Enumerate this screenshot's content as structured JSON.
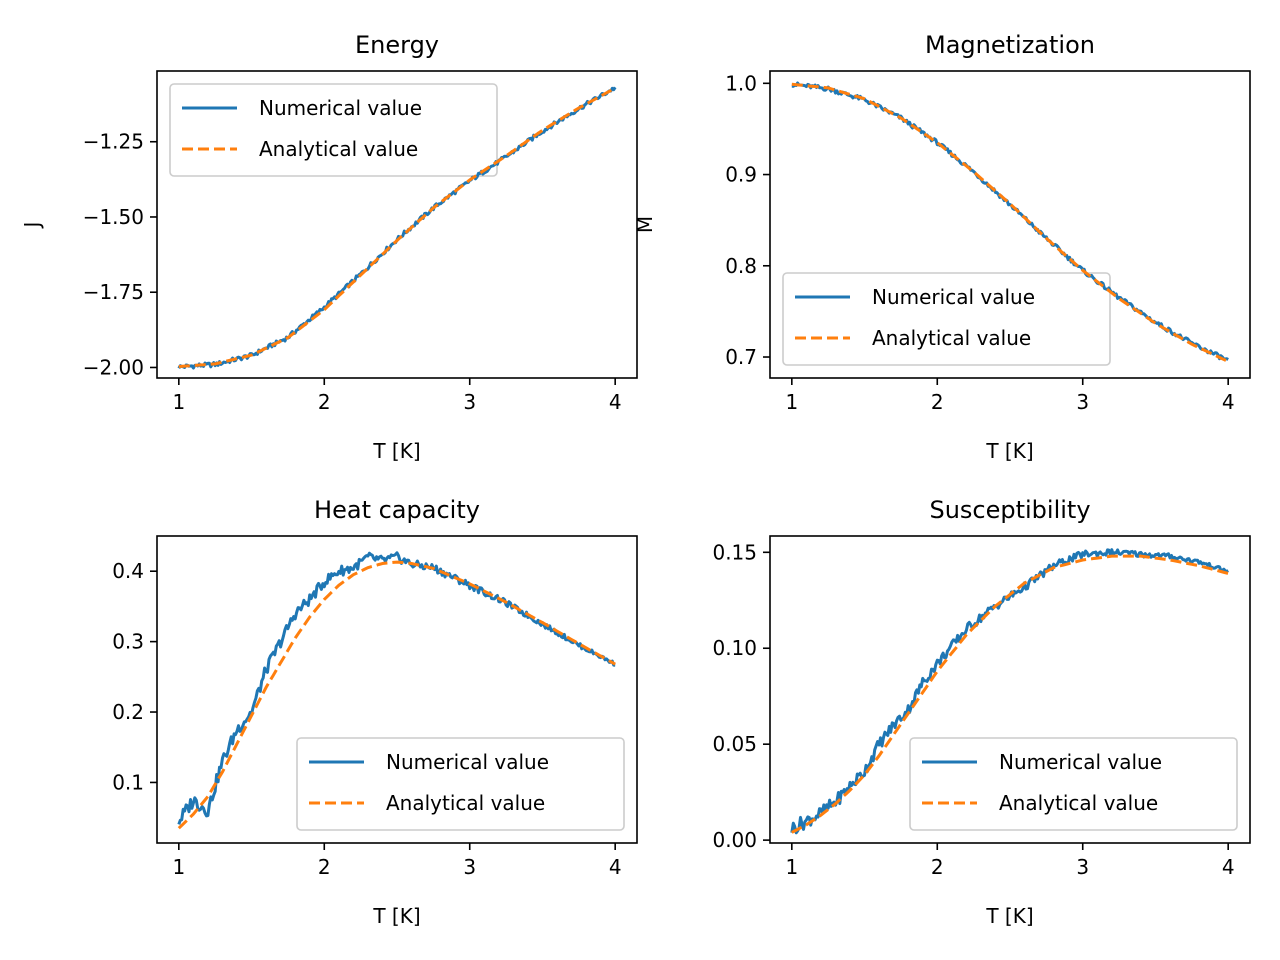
{
  "chart_data": [
    {
      "type": "line",
      "title": "Energy",
      "xlabel": "T [K]",
      "ylabel": "J",
      "xlim": [
        0.85,
        4.15
      ],
      "ylim": [
        -2.035,
        -1.015
      ],
      "xticks": [
        1,
        2,
        3,
        4
      ],
      "xtick_labels": [
        "1",
        "2",
        "3",
        "4"
      ],
      "yticks": [
        -2.0,
        -1.75,
        -1.5,
        -1.25
      ],
      "ytick_labels": [
        "−2.00",
        "−1.75",
        "−1.50",
        "−1.25"
      ],
      "legend": "upper-left",
      "series": [
        {
          "name": "Numerical value",
          "style": "solid",
          "color": "#1f77b4",
          "x": [
            1.0,
            1.25,
            1.5,
            1.75,
            2.0,
            2.25,
            2.5,
            2.75,
            3.0,
            3.25,
            3.5,
            3.75,
            4.0
          ],
          "y": [
            -1.998,
            -1.99,
            -1.96,
            -1.9,
            -1.8,
            -1.69,
            -1.575,
            -1.47,
            -1.38,
            -1.3,
            -1.215,
            -1.14,
            -1.07
          ]
        },
        {
          "name": "Analytical value",
          "style": "dashed",
          "color": "#ff7f0e",
          "x": [
            1.0,
            1.25,
            1.5,
            1.75,
            2.0,
            2.25,
            2.5,
            2.75,
            3.0,
            3.25,
            3.5,
            3.75,
            4.0
          ],
          "y": [
            -1.997,
            -1.988,
            -1.959,
            -1.901,
            -1.808,
            -1.693,
            -1.578,
            -1.47,
            -1.377,
            -1.297,
            -1.212,
            -1.138,
            -1.072
          ]
        }
      ]
    },
    {
      "type": "line",
      "title": "Magnetization",
      "xlabel": "T [K]",
      "ylabel": "M",
      "xlim": [
        0.85,
        4.15
      ],
      "ylim": [
        0.677,
        1.0135
      ],
      "xticks": [
        1,
        2,
        3,
        4
      ],
      "xtick_labels": [
        "1",
        "2",
        "3",
        "4"
      ],
      "yticks": [
        0.7,
        0.8,
        0.9,
        1.0
      ],
      "ytick_labels": [
        "0.7",
        "0.8",
        "0.9",
        "1.0"
      ],
      "legend": "lower-left",
      "series": [
        {
          "name": "Numerical value",
          "style": "solid",
          "color": "#1f77b4",
          "x": [
            1.0,
            1.25,
            1.5,
            1.75,
            2.0,
            2.25,
            2.5,
            2.75,
            3.0,
            3.25,
            3.5,
            3.75,
            4.0
          ],
          "y": [
            0.999,
            0.994,
            0.982,
            0.962,
            0.935,
            0.903,
            0.867,
            0.83,
            0.795,
            0.765,
            0.738,
            0.715,
            0.696
          ]
        },
        {
          "name": "Analytical value",
          "style": "dashed",
          "color": "#ff7f0e",
          "x": [
            1.0,
            1.25,
            1.5,
            1.75,
            2.0,
            2.25,
            2.5,
            2.75,
            3.0,
            3.25,
            3.5,
            3.75,
            4.0
          ],
          "y": [
            0.999,
            0.995,
            0.983,
            0.962,
            0.935,
            0.903,
            0.868,
            0.83,
            0.795,
            0.764,
            0.737,
            0.714,
            0.695
          ]
        }
      ]
    },
    {
      "type": "line",
      "title": "Heat capacity",
      "xlabel": "T [K]",
      "ylabel": "",
      "xlim": [
        0.85,
        4.15
      ],
      "ylim": [
        0.014,
        0.45
      ],
      "xticks": [
        1,
        2,
        3,
        4
      ],
      "xtick_labels": [
        "1",
        "2",
        "3",
        "4"
      ],
      "yticks": [
        0.1,
        0.2,
        0.3,
        0.4
      ],
      "ytick_labels": [
        "0.1",
        "0.2",
        "0.3",
        "0.4"
      ],
      "legend": "lower-right",
      "series": [
        {
          "name": "Numerical value",
          "style": "solid",
          "color": "#1f77b4",
          "x": [
            1.0,
            1.1,
            1.2,
            1.3,
            1.4,
            1.5,
            1.6,
            1.7,
            1.8,
            1.9,
            2.0,
            2.1,
            2.2,
            2.3,
            2.4,
            2.5,
            2.6,
            2.75,
            3.0,
            3.25,
            3.5,
            3.75,
            4.0
          ],
          "y": [
            0.045,
            0.075,
            0.06,
            0.13,
            0.175,
            0.2,
            0.26,
            0.3,
            0.34,
            0.36,
            0.385,
            0.4,
            0.405,
            0.42,
            0.415,
            0.42,
            0.41,
            0.405,
            0.38,
            0.355,
            0.325,
            0.295,
            0.268
          ]
        },
        {
          "name": "Analytical value",
          "style": "dashed",
          "color": "#ff7f0e",
          "x": [
            1.0,
            1.1,
            1.2,
            1.3,
            1.4,
            1.5,
            1.6,
            1.7,
            1.8,
            1.9,
            2.0,
            2.1,
            2.2,
            2.3,
            2.4,
            2.5,
            2.6,
            2.75,
            3.0,
            3.25,
            3.5,
            3.75,
            4.0
          ],
          "y": [
            0.035,
            0.055,
            0.08,
            0.115,
            0.155,
            0.195,
            0.235,
            0.27,
            0.305,
            0.335,
            0.36,
            0.38,
            0.395,
            0.405,
            0.411,
            0.413,
            0.411,
            0.404,
            0.382,
            0.356,
            0.327,
            0.297,
            0.268
          ]
        }
      ]
    },
    {
      "type": "line",
      "title": "Susceptibility",
      "xlabel": "T [K]",
      "ylabel": "",
      "xlim": [
        0.85,
        4.15
      ],
      "ylim": [
        -0.0015,
        0.1585
      ],
      "xticks": [
        1,
        2,
        3,
        4
      ],
      "xtick_labels": [
        "1",
        "2",
        "3",
        "4"
      ],
      "yticks": [
        0.0,
        0.05,
        0.1,
        0.15
      ],
      "ytick_labels": [
        "0.00",
        "0.05",
        "0.10",
        "0.15"
      ],
      "legend": "lower-right",
      "series": [
        {
          "name": "Numerical value",
          "style": "solid",
          "color": "#1f77b4",
          "x": [
            1.0,
            1.1,
            1.2,
            1.3,
            1.4,
            1.5,
            1.6,
            1.7,
            1.8,
            1.9,
            2.0,
            2.2,
            2.4,
            2.6,
            2.8,
            3.0,
            3.2,
            3.4,
            3.6,
            3.8,
            4.0
          ],
          "y": [
            0.006,
            0.01,
            0.014,
            0.02,
            0.028,
            0.036,
            0.05,
            0.06,
            0.068,
            0.082,
            0.092,
            0.11,
            0.122,
            0.132,
            0.143,
            0.149,
            0.15,
            0.149,
            0.148,
            0.145,
            0.14
          ]
        },
        {
          "name": "Analytical value",
          "style": "dashed",
          "color": "#ff7f0e",
          "x": [
            1.0,
            1.1,
            1.2,
            1.3,
            1.4,
            1.5,
            1.6,
            1.7,
            1.8,
            1.9,
            2.0,
            2.2,
            2.4,
            2.6,
            2.8,
            3.0,
            3.2,
            3.4,
            3.6,
            3.8,
            4.0
          ],
          "y": [
            0.004,
            0.008,
            0.013,
            0.019,
            0.026,
            0.034,
            0.044,
            0.055,
            0.066,
            0.077,
            0.088,
            0.107,
            0.122,
            0.134,
            0.142,
            0.146,
            0.148,
            0.148,
            0.146,
            0.143,
            0.139
          ]
        }
      ]
    }
  ]
}
